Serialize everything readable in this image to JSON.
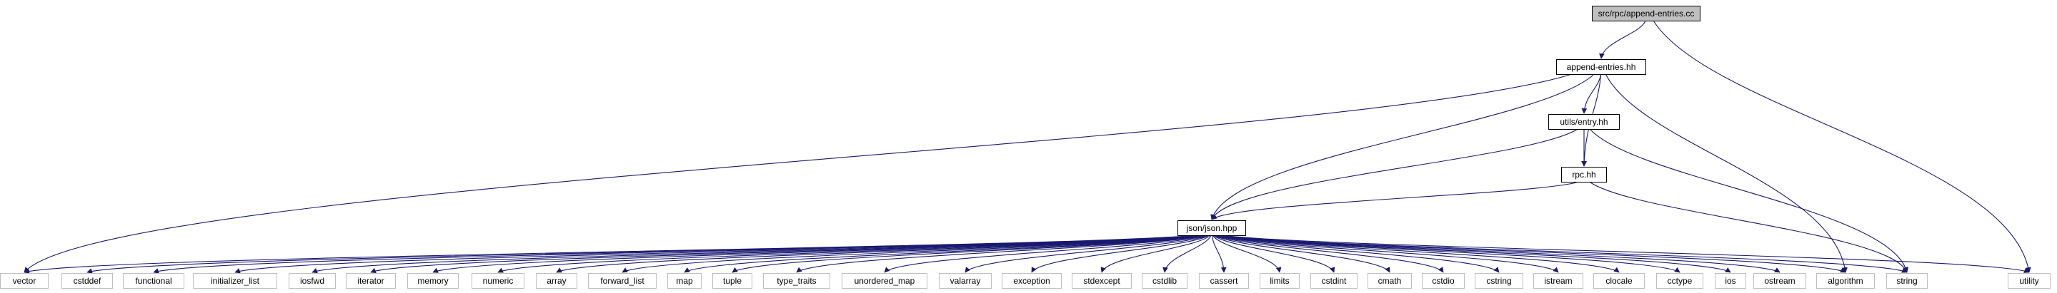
{
  "graph": {
    "root": "src/rpc/append-entries.cc",
    "nodes": {
      "root": "src/rpc/append-entries.cc",
      "append_entries_hh": "append-entries.hh",
      "utils_entry_hh": "utils/entry.hh",
      "rpc_hh": "rpc.hh",
      "json_hpp": "json/json.hpp",
      "vector": "vector",
      "cstddef": "cstddef",
      "functional": "functional",
      "initializer_list": "initializer_list",
      "iosfwd": "iosfwd",
      "iterator": "iterator",
      "memory": "memory",
      "numeric": "numeric",
      "array": "array",
      "forward_list": "forward_list",
      "map": "map",
      "tuple": "tuple",
      "type_traits": "type_traits",
      "unordered_map": "unordered_map",
      "valarray": "valarray",
      "exception": "exception",
      "stdexcept": "stdexcept",
      "cstdlib": "cstdlib",
      "cassert": "cassert",
      "limits": "limits",
      "cstdint": "cstdint",
      "cmath": "cmath",
      "cstdio": "cstdio",
      "cstring": "cstring",
      "istream": "istream",
      "clocale": "clocale",
      "cctype": "cctype",
      "ios": "ios",
      "ostream": "ostream",
      "algorithm": "algorithm",
      "string": "string",
      "utility": "utility"
    },
    "edges": [
      [
        "root",
        "append_entries_hh"
      ],
      [
        "root",
        "utility"
      ],
      [
        "append_entries_hh",
        "vector"
      ],
      [
        "append_entries_hh",
        "json_hpp"
      ],
      [
        "append_entries_hh",
        "utils_entry_hh"
      ],
      [
        "append_entries_hh",
        "rpc_hh"
      ],
      [
        "append_entries_hh",
        "algorithm"
      ],
      [
        "utils_entry_hh",
        "json_hpp"
      ],
      [
        "utils_entry_hh",
        "rpc_hh"
      ],
      [
        "utils_entry_hh",
        "string"
      ],
      [
        "rpc_hh",
        "json_hpp"
      ],
      [
        "rpc_hh",
        "string"
      ],
      [
        "json_hpp",
        "vector"
      ],
      [
        "json_hpp",
        "cstddef"
      ],
      [
        "json_hpp",
        "functional"
      ],
      [
        "json_hpp",
        "initializer_list"
      ],
      [
        "json_hpp",
        "iosfwd"
      ],
      [
        "json_hpp",
        "iterator"
      ],
      [
        "json_hpp",
        "memory"
      ],
      [
        "json_hpp",
        "numeric"
      ],
      [
        "json_hpp",
        "array"
      ],
      [
        "json_hpp",
        "forward_list"
      ],
      [
        "json_hpp",
        "map"
      ],
      [
        "json_hpp",
        "tuple"
      ],
      [
        "json_hpp",
        "type_traits"
      ],
      [
        "json_hpp",
        "unordered_map"
      ],
      [
        "json_hpp",
        "valarray"
      ],
      [
        "json_hpp",
        "exception"
      ],
      [
        "json_hpp",
        "stdexcept"
      ],
      [
        "json_hpp",
        "cstdlib"
      ],
      [
        "json_hpp",
        "cassert"
      ],
      [
        "json_hpp",
        "limits"
      ],
      [
        "json_hpp",
        "cstdint"
      ],
      [
        "json_hpp",
        "cmath"
      ],
      [
        "json_hpp",
        "cstdio"
      ],
      [
        "json_hpp",
        "cstring"
      ],
      [
        "json_hpp",
        "istream"
      ],
      [
        "json_hpp",
        "clocale"
      ],
      [
        "json_hpp",
        "cctype"
      ],
      [
        "json_hpp",
        "ios"
      ],
      [
        "json_hpp",
        "ostream"
      ],
      [
        "json_hpp",
        "algorithm"
      ],
      [
        "json_hpp",
        "string"
      ],
      [
        "json_hpp",
        "utility"
      ]
    ]
  },
  "colors": {
    "edge": "#191970",
    "root_fill": "#bfbfbf",
    "node_border": "#000000",
    "leaf_border": "#bfbfbf"
  }
}
